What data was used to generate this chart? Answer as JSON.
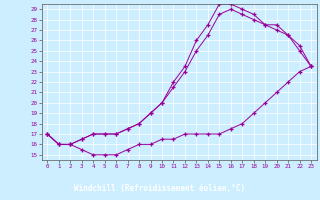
{
  "xlabel": "Windchill (Refroidissement éolien,°C)",
  "background_color": "#cceeff",
  "line_color": "#990099",
  "footer_color": "#660066",
  "footer_text_color": "#ffffff",
  "grid_color": "#aadddd",
  "xlim": [
    -0.5,
    23.5
  ],
  "ylim": [
    14.5,
    29.5
  ],
  "xticks": [
    0,
    1,
    2,
    3,
    4,
    5,
    6,
    7,
    8,
    9,
    10,
    11,
    12,
    13,
    14,
    15,
    16,
    17,
    18,
    19,
    20,
    21,
    22,
    23
  ],
  "yticks": [
    15,
    16,
    17,
    18,
    19,
    20,
    21,
    22,
    23,
    24,
    25,
    26,
    27,
    28,
    29
  ],
  "line1_x": [
    0,
    1,
    2,
    3,
    4,
    5,
    6,
    7,
    8,
    9,
    10,
    11,
    12,
    13,
    14,
    15,
    16,
    17,
    18,
    19,
    20,
    21,
    22,
    23
  ],
  "line1_y": [
    17.0,
    16.0,
    16.0,
    15.5,
    15.0,
    15.0,
    15.0,
    15.5,
    16.0,
    16.0,
    16.5,
    16.5,
    17.0,
    17.0,
    17.0,
    17.0,
    17.5,
    18.0,
    19.0,
    20.0,
    21.0,
    22.0,
    23.0,
    23.5
  ],
  "line2_x": [
    0,
    1,
    2,
    3,
    4,
    5,
    6,
    7,
    8,
    9,
    10,
    11,
    12,
    13,
    14,
    15,
    16,
    17,
    18,
    19,
    20,
    21,
    22,
    23
  ],
  "line2_y": [
    17.0,
    16.0,
    16.0,
    16.5,
    17.0,
    17.0,
    17.0,
    17.5,
    18.0,
    19.0,
    20.0,
    21.5,
    23.0,
    25.0,
    26.5,
    28.5,
    29.0,
    28.5,
    28.0,
    27.5,
    27.0,
    26.5,
    25.0,
    23.5
  ],
  "line3_x": [
    0,
    1,
    2,
    3,
    4,
    5,
    6,
    7,
    8,
    9,
    10,
    11,
    12,
    13,
    14,
    15,
    16,
    17,
    18,
    19,
    20,
    21,
    22,
    23
  ],
  "line3_y": [
    17.0,
    16.0,
    16.0,
    16.5,
    17.0,
    17.0,
    17.0,
    17.5,
    18.0,
    19.0,
    20.0,
    22.0,
    23.5,
    26.0,
    27.5,
    29.5,
    29.5,
    29.0,
    28.5,
    27.5,
    27.5,
    26.5,
    25.5,
    23.5
  ]
}
